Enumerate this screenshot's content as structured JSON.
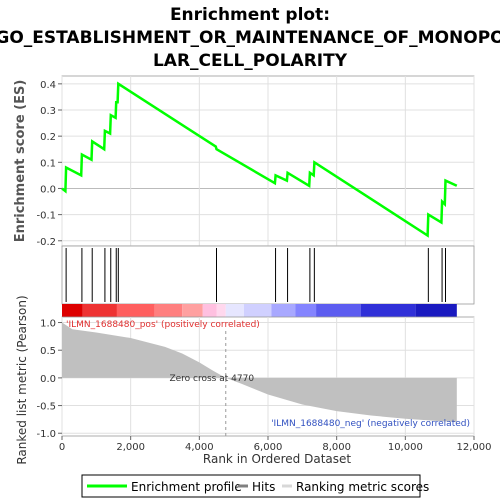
{
  "chart_data": {
    "type": "line",
    "title_lines": [
      "Enrichment plot:",
      "GO_ESTABLISHMENT_OR_MAINTENANCE_OF_MONOPO",
      "LAR_CELL_POLARITY"
    ],
    "colors": {
      "enrichment_line": "#00ff00",
      "hits": "#000000",
      "metric_fill": "#c0c0c0",
      "pos_label": "#e03030",
      "neg_label": "#3050c0",
      "grid": "#e0e0e0"
    },
    "es_panel": {
      "ylabel": "Enrichment score (ES)",
      "ylim": [
        -0.22,
        0.43
      ],
      "yticks": [
        -0.2,
        -0.1,
        0.0,
        0.1,
        0.2,
        0.3,
        0.4
      ],
      "ytick_labels": [
        "-0.2",
        "-0.1",
        "0.0",
        "0.1",
        "0.2",
        "0.3",
        "0.4"
      ],
      "series": [
        {
          "x": [
            0,
            100,
            120,
            560,
            580,
            860,
            880,
            1230,
            1250,
            1400,
            1420,
            1560,
            1580,
            1620,
            1640,
            4480,
            4500,
            6200,
            6220,
            6550,
            6570,
            7200,
            7220,
            7330,
            7350,
            10650,
            10670,
            11050,
            11070,
            11150,
            11170,
            11500
          ],
          "y": [
            0.0,
            -0.01,
            0.08,
            0.05,
            0.13,
            0.11,
            0.18,
            0.15,
            0.22,
            0.21,
            0.28,
            0.27,
            0.33,
            0.33,
            0.4,
            0.16,
            0.15,
            0.02,
            0.05,
            0.03,
            0.06,
            0.01,
            0.06,
            0.05,
            0.1,
            -0.18,
            -0.1,
            -0.13,
            -0.05,
            -0.06,
            0.03,
            0.01
          ]
        }
      ]
    },
    "hits": [
      120,
      580,
      880,
      1250,
      1420,
      1580,
      1640,
      4500,
      6220,
      6570,
      7220,
      7350,
      10670,
      11070,
      11170
    ],
    "heat_band": [
      {
        "from": 0,
        "to": 600,
        "color": "#dd0000"
      },
      {
        "from": 600,
        "to": 1600,
        "color": "#ee3333"
      },
      {
        "from": 1600,
        "to": 2700,
        "color": "#ff5f5f"
      },
      {
        "from": 2700,
        "to": 3500,
        "color": "#ff7f7f"
      },
      {
        "from": 3500,
        "to": 4100,
        "color": "#ffa0a0"
      },
      {
        "from": 4100,
        "to": 4500,
        "color": "#ffc0e0"
      },
      {
        "from": 4500,
        "to": 4770,
        "color": "#ffd8ee"
      },
      {
        "from": 4770,
        "to": 5300,
        "color": "#e6e6ff"
      },
      {
        "from": 5300,
        "to": 6100,
        "color": "#d0d0ff"
      },
      {
        "from": 6100,
        "to": 6800,
        "color": "#a8a8ff"
      },
      {
        "from": 6800,
        "to": 7400,
        "color": "#8484ff"
      },
      {
        "from": 7400,
        "to": 8700,
        "color": "#5c5cf0"
      },
      {
        "from": 8700,
        "to": 10300,
        "color": "#3030d8"
      },
      {
        "from": 10300,
        "to": 11500,
        "color": "#1a1ac0"
      }
    ],
    "metric_panel": {
      "ylabel": "Ranked list metric (Pearson)",
      "ylim": [
        -1.05,
        1.1
      ],
      "yticks": [
        -1.0,
        -0.5,
        0.0,
        0.5,
        1.0
      ],
      "ytick_labels": [
        "-1.0",
        "-0.5",
        "0.0",
        "0.5",
        "1.0"
      ],
      "profile_x": [
        0,
        300,
        1000,
        2000,
        3000,
        3500,
        4000,
        4400,
        4770,
        5200,
        6000,
        7000,
        8000,
        9000,
        10000,
        11000,
        11500
      ],
      "profile_y": [
        1.0,
        0.88,
        0.82,
        0.72,
        0.56,
        0.44,
        0.28,
        0.13,
        0.0,
        -0.1,
        -0.3,
        -0.48,
        -0.6,
        -0.68,
        -0.74,
        -0.78,
        -0.8
      ],
      "zero_cross": 4770,
      "zero_cross_label": "Zero cross at 4770",
      "pos_label": "'ILMN_1688480_pos' (positively correlated)",
      "neg_label": "'ILMN_1688480_neg' (negatively correlated)"
    },
    "x_axis": {
      "label": "Rank in Ordered Dataset",
      "xlim": [
        0,
        12000
      ],
      "data_max": 11500,
      "ticks": [
        0,
        2000,
        4000,
        6000,
        8000,
        10000,
        12000
      ],
      "tick_labels": [
        "0",
        "2,000",
        "4,000",
        "6,000",
        "8,000",
        "10,000",
        "12,000"
      ]
    },
    "legend": {
      "placement": "bottom",
      "items": [
        {
          "label": "Enrichment profile",
          "color": "#00ff00",
          "kind": "line"
        },
        {
          "label": "Hits",
          "color": "#808080",
          "kind": "line"
        },
        {
          "label": "Ranking metric scores",
          "color": "#d8d8d8",
          "kind": "line"
        }
      ]
    }
  }
}
